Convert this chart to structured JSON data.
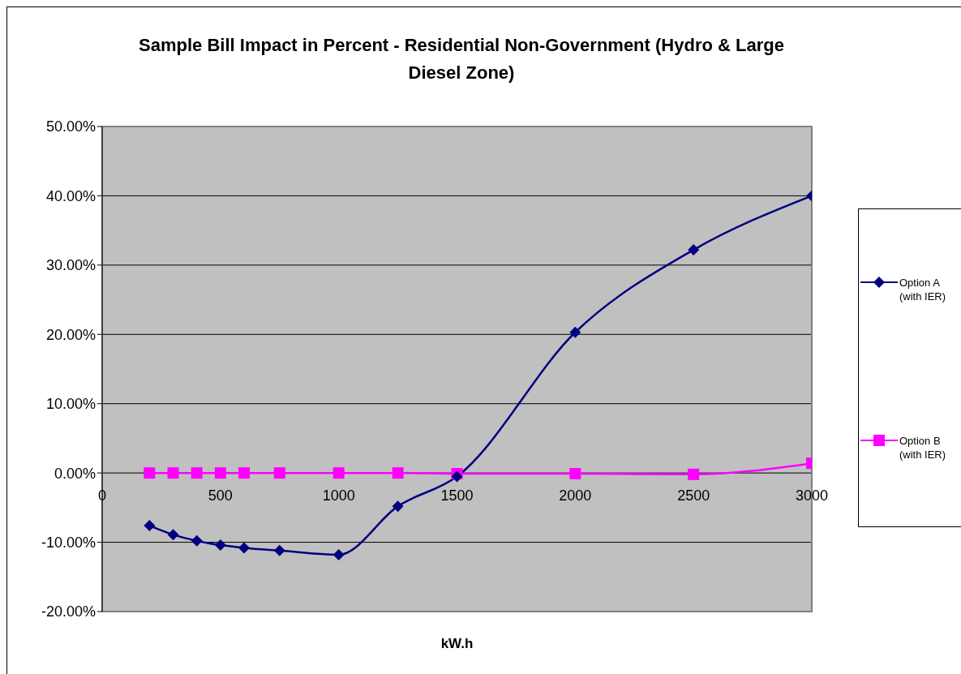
{
  "chart_data": {
    "type": "line",
    "title": "Sample Bill Impact in Percent - Residential Non-Government (Hydro & Large Diesel Zone)",
    "xlabel": "kW.h",
    "x": [
      200,
      300,
      400,
      500,
      600,
      750,
      1000,
      1250,
      1500,
      2000,
      2500,
      3000
    ],
    "series": [
      {
        "name": "Option A (with IER)",
        "color": "#000080",
        "marker": "diamond",
        "values": [
          -7.6,
          -8.9,
          -9.8,
          -10.4,
          -10.8,
          -11.2,
          -11.8,
          -4.8,
          -0.5,
          20.3,
          32.2,
          40.0
        ]
      },
      {
        "name": "Option B (with IER)",
        "color": "#ff00ff",
        "marker": "square",
        "values": [
          0,
          0,
          0,
          0,
          0,
          0,
          0,
          0,
          -0.1,
          -0.1,
          -0.2,
          1.4
        ]
      }
    ],
    "xlim": [
      0,
      3000
    ],
    "xticks": [
      0,
      500,
      1000,
      1500,
      2000,
      2500,
      3000
    ],
    "ylim": [
      -20,
      50
    ],
    "yticks": [
      {
        "value": -20,
        "label": "-20.00%"
      },
      {
        "value": -10,
        "label": "-10.00%"
      },
      {
        "value": 0,
        "label": "0.00%"
      },
      {
        "value": 10,
        "label": "10.00%"
      },
      {
        "value": 20,
        "label": "20.00%"
      },
      {
        "value": 30,
        "label": "30.00%"
      },
      {
        "value": 40,
        "label": "40.00%"
      },
      {
        "value": 50,
        "label": "50.00%"
      }
    ],
    "grid": "y",
    "legend": "right",
    "line_style": "solid"
  }
}
